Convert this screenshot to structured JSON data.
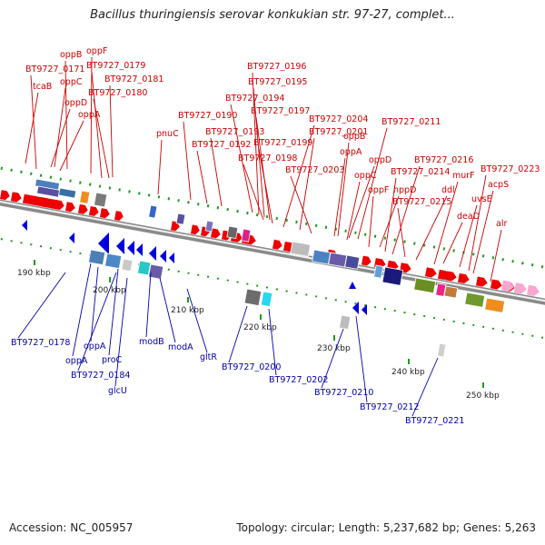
{
  "title": "Bacillus thuringiensis serovar konkukian str. 97-27, complet...",
  "footer": {
    "accession": "Accession: NC_005957",
    "topology": "Topology: circular; Length: 5,237,682 bp; Genes: 5,263"
  },
  "colors": {
    "forward_arrow": "#ee0000",
    "reverse_arrow": "#0000dd",
    "forward_label": "#cc0000",
    "reverse_label": "#0000aa",
    "backbone": "#b0b0b0",
    "tick": "#229922",
    "ruler_text": "#222222"
  },
  "ruler": [
    {
      "label": "190 kbp"
    },
    {
      "label": "200 kbp"
    },
    {
      "label": "210 kbp"
    },
    {
      "label": "220 kbp"
    },
    {
      "label": "230 kbp"
    },
    {
      "label": "240 kbp"
    },
    {
      "label": "250 kbp"
    }
  ],
  "forward_labels": [
    {
      "text": "oppB"
    },
    {
      "text": "oppF"
    },
    {
      "text": "BT9727_0171"
    },
    {
      "text": "BT9727_0179"
    },
    {
      "text": "tcaB"
    },
    {
      "text": "oppC"
    },
    {
      "text": "BT9727_0181"
    },
    {
      "text": "oppD"
    },
    {
      "text": "BT9727_0180"
    },
    {
      "text": "oppA"
    },
    {
      "text": "pnuC"
    },
    {
      "text": "BT9727_0196"
    },
    {
      "text": "BT9727_0195"
    },
    {
      "text": "BT9727_0194"
    },
    {
      "text": "BT9727_0197"
    },
    {
      "text": "BT9727_0190"
    },
    {
      "text": "BT9727_0193"
    },
    {
      "text": "BT9727_0192"
    },
    {
      "text": "BT9727_0199"
    },
    {
      "text": "BT9727_0198"
    },
    {
      "text": "BT9727_0204"
    },
    {
      "text": "BT9727_0201"
    },
    {
      "text": "BT9727_0203"
    },
    {
      "text": "BT9727_0211"
    },
    {
      "text": "oppB"
    },
    {
      "text": "oppA"
    },
    {
      "text": "oppD"
    },
    {
      "text": "oppC"
    },
    {
      "text": "oppF"
    },
    {
      "text": "hppD"
    },
    {
      "text": "BT9727_0216"
    },
    {
      "text": "BT9727_0214"
    },
    {
      "text": "murF"
    },
    {
      "text": "BT9727_0223"
    },
    {
      "text": "ddl"
    },
    {
      "text": "BT9727_0215"
    },
    {
      "text": "acpS"
    },
    {
      "text": "uvsE"
    },
    {
      "text": "deaD"
    },
    {
      "text": "alr"
    }
  ],
  "reverse_labels": [
    {
      "text": "BT9727_0178"
    },
    {
      "text": "oppA"
    },
    {
      "text": "oppA"
    },
    {
      "text": "proC"
    },
    {
      "text": "BT9727_0184"
    },
    {
      "text": "glcU"
    },
    {
      "text": "modB"
    },
    {
      "text": "modA"
    },
    {
      "text": "gltR"
    },
    {
      "text": "BT9727_0200"
    },
    {
      "text": "BT9727_0202"
    },
    {
      "text": "BT9727_0210"
    },
    {
      "text": "BT9727_0212"
    },
    {
      "text": "BT9727_0221"
    }
  ]
}
